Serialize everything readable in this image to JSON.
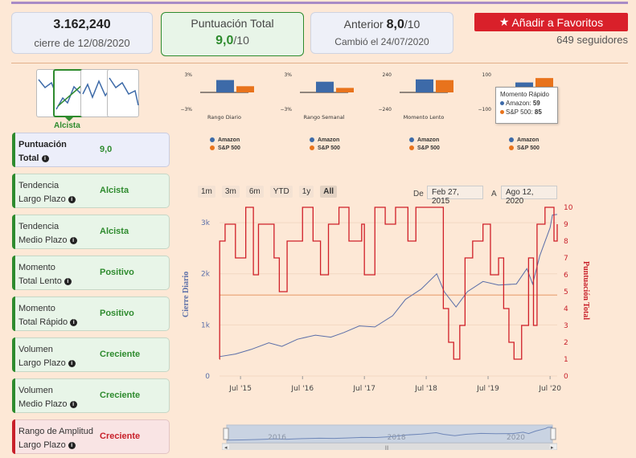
{
  "header": {
    "price_value": "3.162,240",
    "price_sub": "cierre de 12/08/2020",
    "score_title": "Puntuación Total",
    "score_value": "9,0",
    "score_denom": "/10",
    "prev_label": "Anterior",
    "prev_value": "8,0",
    "prev_denom": "/10",
    "prev_sub": "Cambió el 24/07/2020",
    "fav_button": "Añadir a Favoritos",
    "followers": "649 seguidores"
  },
  "trend": {
    "label": "Alcista"
  },
  "indicators": [
    {
      "label_line1": "Puntuación",
      "label_line2": "Total",
      "value": "9,0",
      "style": "purple"
    },
    {
      "label_line1": "Tendencia",
      "label_line2": "Largo Plazo",
      "value": "Alcista",
      "style": "green"
    },
    {
      "label_line1": "Tendencia",
      "label_line2": "Medio Plazo",
      "value": "Alcista",
      "style": "green"
    },
    {
      "label_line1": "Momento",
      "label_line2": "Total Lento",
      "value": "Positivo",
      "style": "green"
    },
    {
      "label_line1": "Momento",
      "label_line2": "Total Rápido",
      "value": "Positivo",
      "style": "green"
    },
    {
      "label_line1": "Volumen",
      "label_line2": "Largo Plazo",
      "value": "Creciente",
      "style": "green"
    },
    {
      "label_line1": "Volumen",
      "label_line2": "Medio Plazo",
      "value": "Creciente",
      "style": "green"
    },
    {
      "label_line1": "Rango de Amplitud",
      "label_line2": "Largo Plazo",
      "value": "Creciente",
      "style": "red"
    }
  ],
  "colors": {
    "amazon": "#3d6aa8",
    "sp500": "#e8731c",
    "green": "#2e8b2e",
    "red": "#c8202a"
  },
  "tooltip": {
    "title": "Momento Rápido",
    "amazon_label": "Amazon:",
    "amazon_value": "59",
    "sp_label": "S&P 500:",
    "sp_value": "85"
  },
  "range_buttons": [
    "1m",
    "3m",
    "6m",
    "YTD",
    "1y",
    "All"
  ],
  "date_from_label": "De",
  "date_from": "Feb 27, 2015",
  "date_to_label": "A",
  "date_to": "Ago 12, 2020",
  "axis_left_title": "Cierre Diario",
  "axis_right_title": "Puntuación Total",
  "navigator_labels": [
    "2016",
    "2018",
    "2020"
  ],
  "chart_data": [
    {
      "type": "bar",
      "title": "Rango Diario",
      "categories": [
        "Amazon",
        "S&P 500"
      ],
      "values": [
        2.2,
        1.1
      ],
      "yticks": [
        "3%",
        "−3%"
      ],
      "ylim": [
        -3,
        3
      ]
    },
    {
      "type": "bar",
      "title": "Rango Semanal",
      "categories": [
        "Amazon",
        "S&P 500"
      ],
      "values": [
        1.9,
        0.8
      ],
      "yticks": [
        "3%",
        "−3%"
      ],
      "ylim": [
        -3,
        3
      ]
    },
    {
      "type": "bar",
      "title": "Momento Lento",
      "categories": [
        "Amazon",
        "S&P 500"
      ],
      "values": [
        185,
        175
      ],
      "yticks": [
        "240",
        "−240"
      ],
      "ylim": [
        -240,
        240
      ]
    },
    {
      "type": "bar",
      "title": "Momento Rápido",
      "categories": [
        "Amazon",
        "S&P 500"
      ],
      "values": [
        59,
        85
      ],
      "yticks": [
        "100",
        "−100"
      ],
      "ylim": [
        -100,
        100
      ]
    },
    {
      "type": "line",
      "title": "",
      "x_ticks": [
        "Jul '15",
        "Jul '16",
        "Jul '17",
        "Jul '18",
        "Jul '19",
        "Jul '20"
      ],
      "y_left_ticks": [
        "0",
        "1k",
        "2k",
        "3k"
      ],
      "y_right_ticks": [
        "0",
        "1",
        "2",
        "3",
        "4",
        "5",
        "6",
        "7",
        "8",
        "9",
        "10"
      ],
      "ylim_left": [
        0,
        3300
      ],
      "ylim_right": [
        0,
        10
      ],
      "reference_line_right": 4.8,
      "series": [
        {
          "name": "Cierre Diario",
          "axis": "left",
          "x": [
            "2015-02-27",
            "2015-06-01",
            "2015-09-01",
            "2015-12-15",
            "2016-03-01",
            "2016-06-01",
            "2016-09-15",
            "2016-12-15",
            "2017-03-01",
            "2017-06-01",
            "2017-09-01",
            "2017-12-15",
            "2018-03-01",
            "2018-06-01",
            "2018-09-01",
            "2018-10-15",
            "2018-12-24",
            "2019-03-01",
            "2019-06-01",
            "2019-09-01",
            "2019-12-15",
            "2020-02-15",
            "2020-03-20",
            "2020-05-01",
            "2020-07-01",
            "2020-07-15",
            "2020-08-12"
          ],
          "values": [
            380,
            430,
            520,
            650,
            580,
            720,
            800,
            760,
            850,
            980,
            960,
            1180,
            1500,
            1700,
            2000,
            1650,
            1350,
            1650,
            1850,
            1780,
            1800,
            2100,
            1800,
            2350,
            2900,
            3150,
            3160
          ]
        },
        {
          "name": "Puntuación Total",
          "axis": "right",
          "x": [
            "2015-02-27",
            "2015-02-28",
            "2015-04-01",
            "2015-06-01",
            "2015-08-01",
            "2015-09-15",
            "2015-10-15",
            "2016-01-15",
            "2016-02-15",
            "2016-04-01",
            "2016-07-01",
            "2016-09-01",
            "2016-10-15",
            "2016-12-01",
            "2017-02-01",
            "2017-04-01",
            "2017-06-15",
            "2017-07-01",
            "2017-09-01",
            "2017-11-01",
            "2018-01-01",
            "2018-03-15",
            "2018-05-01",
            "2018-07-01",
            "2018-09-15",
            "2018-10-10",
            "2018-11-10",
            "2018-12-10",
            "2019-01-15",
            "2019-02-15",
            "2019-04-01",
            "2019-06-01",
            "2019-07-15",
            "2019-09-01",
            "2019-10-01",
            "2019-11-01",
            "2019-12-01",
            "2020-01-15",
            "2020-02-25",
            "2020-03-25",
            "2020-04-15",
            "2020-06-01",
            "2020-07-24",
            "2020-08-12"
          ],
          "values": [
            1,
            8,
            9,
            7,
            10,
            6,
            9,
            7,
            5,
            8,
            10,
            8,
            6,
            9,
            10,
            8,
            9,
            6,
            10,
            9,
            10,
            8,
            10,
            10,
            10,
            4,
            2,
            1,
            3,
            7,
            8,
            9,
            6,
            7,
            4,
            2,
            1,
            3,
            7,
            3,
            9,
            10,
            8,
            9
          ]
        }
      ]
    }
  ]
}
